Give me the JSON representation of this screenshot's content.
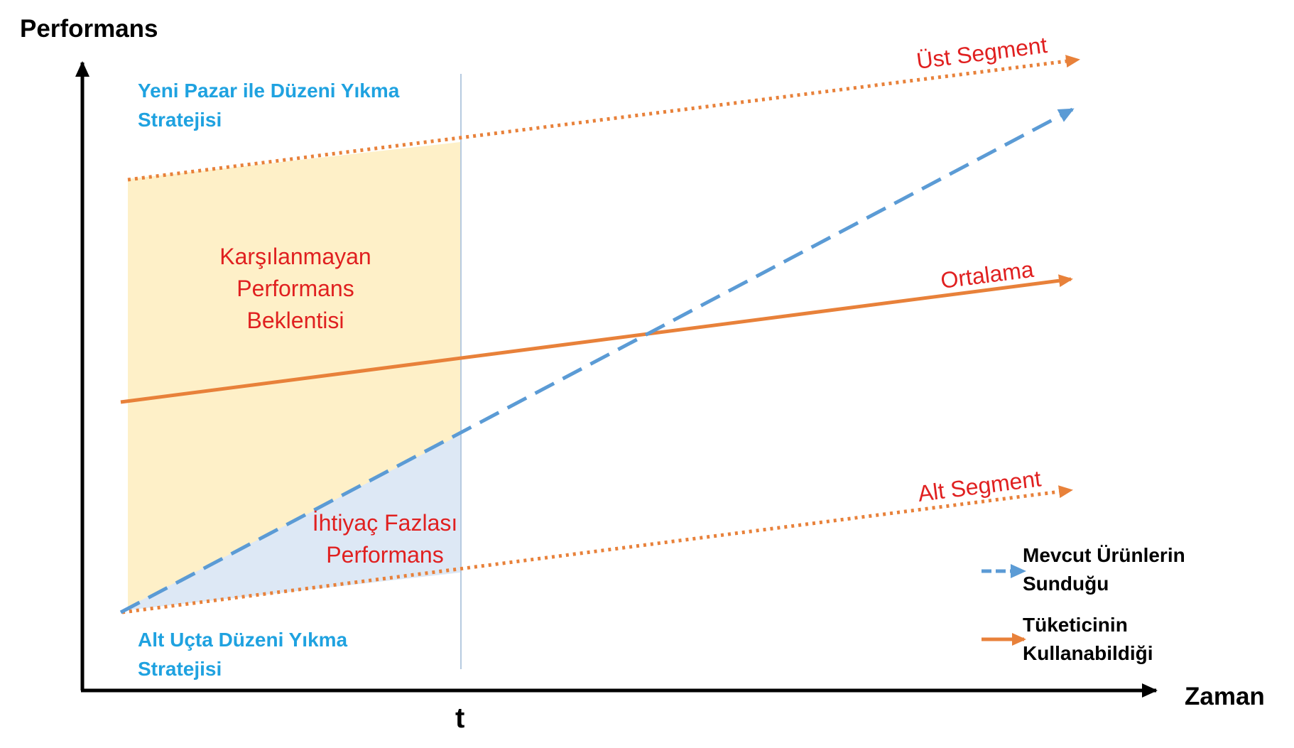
{
  "axes": {
    "y_title": "Performans",
    "x_title": "Zaman",
    "t_marker": "t"
  },
  "strategies": {
    "top_line1": "Yeni Pazar ile Düzeni Yıkma",
    "top_line2": "Stratejisi",
    "bottom_line1": "Alt Uçta Düzeni Yıkma",
    "bottom_line2": "Stratejisi"
  },
  "lines": {
    "upper": "Üst Segment",
    "average": "Ortalama",
    "lower": "Alt Segment"
  },
  "regions": {
    "unmet_line1": "Karşılanmayan",
    "unmet_line2": "Performans",
    "unmet_line3": "Beklentisi",
    "excess_line1": "İhtiyaç Fazlası",
    "excess_line2": "Performans"
  },
  "legend": {
    "supply_line1": "Mevcut Ürünlerin",
    "supply_line2": "Sunduğu",
    "usable_line1": "Tüketicinin",
    "usable_line2": "Kullanabildiği"
  },
  "colors": {
    "orange": "#E8813A",
    "blue": "#5B9BD5",
    "red_text": "#E02020",
    "blue_text": "#1FA2E0",
    "unmet_fill": "#FEF0C8",
    "excess_fill": "#DDE8F5"
  }
}
